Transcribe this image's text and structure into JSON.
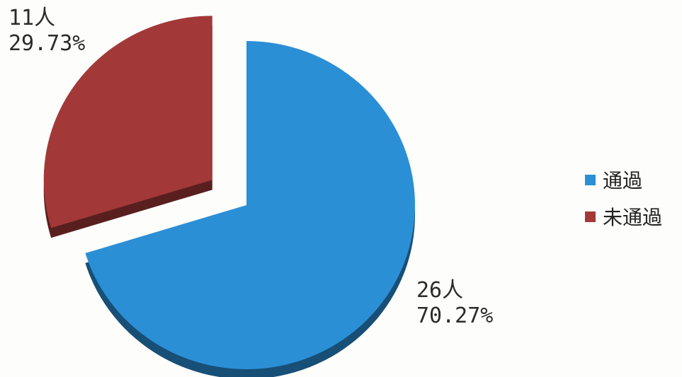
{
  "chart_data": {
    "type": "pie",
    "slices": [
      {
        "label": "通過",
        "count_label": "26人",
        "percent_label": "70.27%",
        "value": 26,
        "percent": 70.27,
        "color": "#2b8fd6",
        "exploded": false
      },
      {
        "label": "未通過",
        "count_label": "11人",
        "percent_label": "29.73%",
        "value": 11,
        "percent": 29.73,
        "color": "#a23838",
        "exploded": true
      }
    ],
    "legend": {
      "position": "right",
      "entries": [
        "通過",
        "未通過"
      ]
    }
  }
}
